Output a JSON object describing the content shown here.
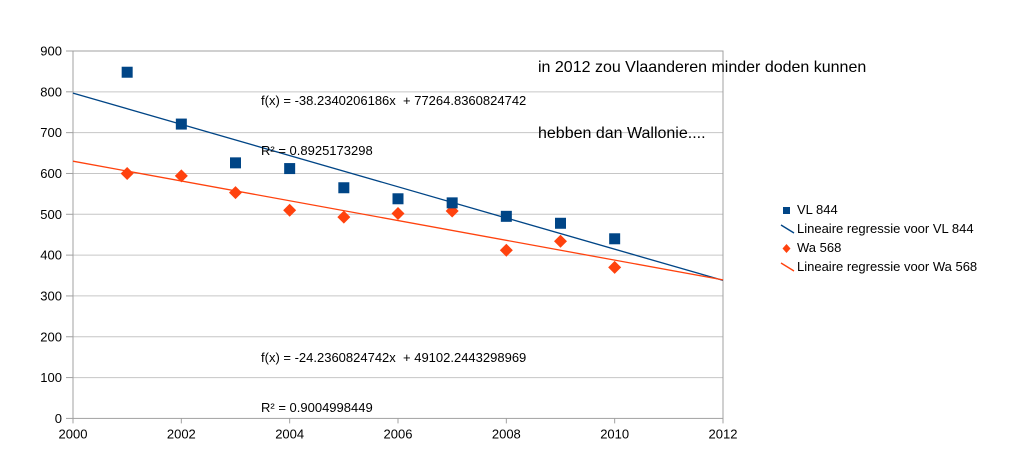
{
  "title": {
    "line1": "in 2012 zou Vlaanderen minder doden kunnen",
    "line2": "hebben dan Wallonie...."
  },
  "annotations": {
    "vl_equation": "f(x) = -38.2340206186x  + 77264.8360824742",
    "vl_r2": "R² = 0.8925173298",
    "wa_equation": "f(x) = -24.2360824742x  + 49102.2443298969",
    "wa_r2": "R² = 0.9004998449"
  },
  "legend": {
    "items": [
      {
        "label": "VL 844",
        "marker": "square",
        "color": "#004586"
      },
      {
        "label": "Lineaire regressie voor VL 844",
        "marker": "line",
        "color": "#004586"
      },
      {
        "label": "Wa 568",
        "marker": "diamond",
        "color": "#FF420E"
      },
      {
        "label": "Lineaire regressie voor Wa 568",
        "marker": "line",
        "color": "#FF420E"
      }
    ]
  },
  "colors": {
    "vl": "#004586",
    "wa": "#FF420E",
    "gridline": "#C6C6C6",
    "axis": "#A0A0A0",
    "text": "#000000"
  },
  "chart_data": {
    "type": "scatter",
    "x": [
      2001,
      2002,
      2003,
      2004,
      2005,
      2006,
      2007,
      2008,
      2009,
      2010
    ],
    "series": [
      {
        "name": "VL 844",
        "marker": "square",
        "color": "#004586",
        "values": [
          848,
          721,
          626,
          612,
          565,
          538,
          528,
          495,
          478,
          440
        ]
      },
      {
        "name": "Wa 568",
        "marker": "diamond",
        "color": "#FF420E",
        "values": [
          600,
          594,
          553,
          510,
          493,
          502,
          508,
          412,
          434,
          370
        ]
      }
    ],
    "trendlines": [
      {
        "name": "Lineaire regressie voor VL 844",
        "slope": -38.2340206186,
        "intercept": 77264.8360824742,
        "r2": 0.8925173298,
        "color": "#004586"
      },
      {
        "name": "Lineaire regressie voor Wa 568",
        "slope": -24.2360824742,
        "intercept": 49102.2443298969,
        "r2": 0.9004998449,
        "color": "#FF420E"
      }
    ],
    "xlim": [
      2000,
      2012
    ],
    "ylim": [
      0,
      900
    ],
    "x_ticks": [
      2000,
      2002,
      2004,
      2006,
      2008,
      2010,
      2012
    ],
    "y_ticks": [
      0,
      100,
      200,
      300,
      400,
      500,
      600,
      700,
      800,
      900
    ],
    "grid": "horizontal-only",
    "legend_position": "right"
  }
}
